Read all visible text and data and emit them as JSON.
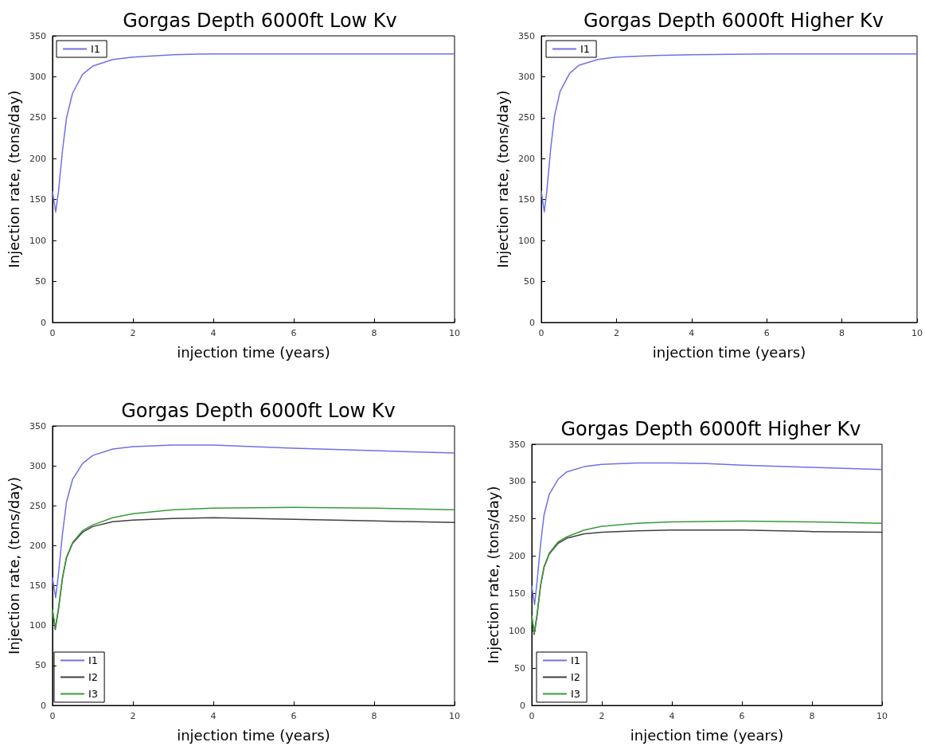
{
  "chart_data": [
    {
      "type": "line",
      "title": "Gorgas Depth 6000ft Low Kv",
      "xlabel": "injection time (years)",
      "ylabel": "Injection rate, (tons/day)",
      "xlim": [
        0,
        10
      ],
      "xticks": [
        0,
        2,
        4,
        6,
        8,
        10
      ],
      "ylim": [
        0,
        350
      ],
      "yticks": [
        0,
        50,
        100,
        150,
        200,
        250,
        300,
        350
      ],
      "grid": false,
      "legend": "top left",
      "marker": "none",
      "line_style": "solid",
      "series": [
        {
          "name": "I1",
          "color": "#7070e8",
          "x": [
            0,
            0.08,
            0.15,
            0.25,
            0.35,
            0.5,
            0.75,
            1,
            1.5,
            2,
            3,
            4,
            6,
            8,
            10
          ],
          "values": [
            160,
            135,
            160,
            210,
            250,
            280,
            303,
            313,
            321,
            324,
            327,
            328,
            328,
            328,
            328
          ]
        }
      ]
    },
    {
      "type": "line",
      "title": "Gorgas Depth 6000ft Higher Kv",
      "xlabel": "injection time (years)",
      "ylabel": "Injection rate, (tons/day)",
      "xlim": [
        0,
        10
      ],
      "xticks": [
        0,
        2,
        4,
        6,
        8,
        10
      ],
      "ylim": [
        0,
        350
      ],
      "yticks": [
        0,
        50,
        100,
        150,
        200,
        250,
        300,
        350
      ],
      "grid": false,
      "legend": "top left",
      "marker": "none",
      "line_style": "solid",
      "series": [
        {
          "name": "I1",
          "color": "#7070e8",
          "x": [
            0,
            0.08,
            0.15,
            0.25,
            0.35,
            0.5,
            0.75,
            1,
            1.5,
            2,
            3,
            4,
            6,
            8,
            10
          ],
          "values": [
            160,
            135,
            162,
            212,
            252,
            282,
            304,
            314,
            321,
            324,
            326,
            327,
            328,
            328,
            328
          ]
        }
      ]
    },
    {
      "type": "line",
      "title": "Gorgas Depth 6000ft Low Kv",
      "xlabel": "injection time (years)",
      "ylabel": "Injection rate, (tons/day)",
      "xlim": [
        0,
        10
      ],
      "xticks": [
        0,
        2,
        4,
        6,
        8,
        10
      ],
      "ylim": [
        0,
        350
      ],
      "yticks": [
        0,
        50,
        100,
        150,
        200,
        250,
        300,
        350
      ],
      "grid": false,
      "legend": "bottom left",
      "marker": "none",
      "line_style": "solid",
      "series": [
        {
          "name": "I1",
          "color": "#7070e8",
          "x": [
            0,
            0.08,
            0.15,
            0.25,
            0.35,
            0.5,
            0.75,
            1,
            1.5,
            2,
            3,
            4,
            5,
            6,
            8,
            10
          ],
          "values": [
            160,
            135,
            165,
            215,
            255,
            283,
            303,
            313,
            321,
            324,
            326,
            326,
            324,
            322,
            319,
            316
          ]
        },
        {
          "name": "I2",
          "color": "#404040",
          "x": [
            0,
            0.07,
            0.15,
            0.25,
            0.35,
            0.5,
            0.75,
            1,
            1.5,
            2,
            3,
            4,
            6,
            8,
            10
          ],
          "values": [
            120,
            95,
            120,
            160,
            185,
            203,
            217,
            224,
            230,
            232,
            234,
            235,
            233,
            231,
            229
          ]
        },
        {
          "name": "I3",
          "color": "#3a9a3a",
          "x": [
            0,
            0.07,
            0.15,
            0.25,
            0.35,
            0.5,
            0.75,
            1,
            1.5,
            2,
            3,
            4,
            6,
            8,
            10
          ],
          "values": [
            120,
            97,
            122,
            160,
            186,
            204,
            219,
            226,
            235,
            240,
            245,
            247,
            248,
            247,
            245
          ]
        }
      ]
    },
    {
      "type": "line",
      "title": "Gorgas Depth 6000ft Higher Kv",
      "xlabel": "injection time (years)",
      "ylabel": "Injection rate, (tons/day)",
      "xlim": [
        0,
        10
      ],
      "xticks": [
        0,
        2,
        4,
        6,
        8,
        10
      ],
      "ylim": [
        0,
        350
      ],
      "yticks": [
        0,
        50,
        100,
        150,
        200,
        250,
        300,
        350
      ],
      "grid": false,
      "legend": "bottom left",
      "marker": "none",
      "line_style": "solid",
      "series": [
        {
          "name": "I1",
          "color": "#7070e8",
          "x": [
            0,
            0.08,
            0.15,
            0.25,
            0.35,
            0.5,
            0.75,
            1,
            1.5,
            2,
            3,
            4,
            5,
            6,
            8,
            10
          ],
          "values": [
            160,
            135,
            165,
            215,
            255,
            283,
            303,
            313,
            320,
            323,
            325,
            325,
            324,
            322,
            319,
            316
          ]
        },
        {
          "name": "I2",
          "color": "#404040",
          "x": [
            0,
            0.07,
            0.15,
            0.25,
            0.35,
            0.5,
            0.75,
            1,
            1.5,
            2,
            3,
            4,
            6,
            8,
            10
          ],
          "values": [
            120,
            95,
            120,
            160,
            185,
            203,
            217,
            224,
            230,
            232,
            234,
            235,
            235,
            233,
            232
          ]
        },
        {
          "name": "I3",
          "color": "#3a9a3a",
          "x": [
            0,
            0.07,
            0.15,
            0.25,
            0.35,
            0.5,
            0.75,
            1,
            1.5,
            2,
            3,
            4,
            6,
            8,
            10
          ],
          "values": [
            120,
            97,
            122,
            160,
            186,
            204,
            219,
            226,
            235,
            240,
            244,
            246,
            247,
            246,
            244
          ]
        }
      ]
    }
  ]
}
